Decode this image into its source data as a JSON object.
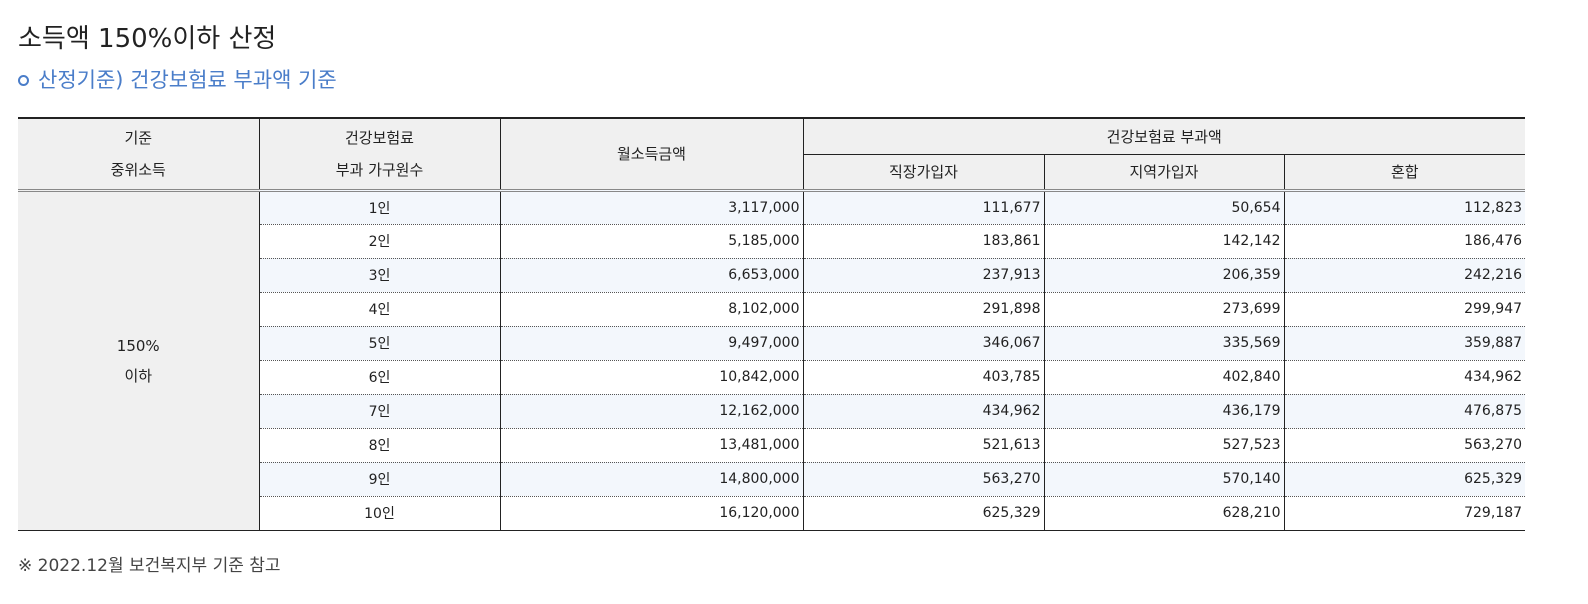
{
  "title": "소득액 150%이하 산정",
  "subtitle": "산정기준) 건강보험료 부과액 기준",
  "table": {
    "headers": {
      "col1_line1": "기준",
      "col1_line2": "중위소득",
      "col2_line1": "건강보험료",
      "col2_line2": "부과 가구원수",
      "col3": "월소득금액",
      "group": "건강보험료 부과액",
      "sub1": "직장가입자",
      "sub2": "지역가입자",
      "sub3": "혼합"
    },
    "merged_line1": "150%",
    "merged_line2": "이하",
    "rows": [
      {
        "count": "1인",
        "income": "3,117,000",
        "employee": "111,677",
        "regional": "50,654",
        "mixed": "112,823"
      },
      {
        "count": "2인",
        "income": "5,185,000",
        "employee": "183,861",
        "regional": "142,142",
        "mixed": "186,476"
      },
      {
        "count": "3인",
        "income": "6,653,000",
        "employee": "237,913",
        "regional": "206,359",
        "mixed": "242,216"
      },
      {
        "count": "4인",
        "income": "8,102,000",
        "employee": "291,898",
        "regional": "273,699",
        "mixed": "299,947"
      },
      {
        "count": "5인",
        "income": "9,497,000",
        "employee": "346,067",
        "regional": "335,569",
        "mixed": "359,887"
      },
      {
        "count": "6인",
        "income": "10,842,000",
        "employee": "403,785",
        "regional": "402,840",
        "mixed": "434,962"
      },
      {
        "count": "7인",
        "income": "12,162,000",
        "employee": "434,962",
        "regional": "436,179",
        "mixed": "476,875"
      },
      {
        "count": "8인",
        "income": "13,481,000",
        "employee": "521,613",
        "regional": "527,523",
        "mixed": "563,270"
      },
      {
        "count": "9인",
        "income": "14,800,000",
        "employee": "563,270",
        "regional": "570,140",
        "mixed": "625,329"
      },
      {
        "count": "10인",
        "income": "16,120,000",
        "employee": "625,329",
        "regional": "628,210",
        "mixed": "729,187"
      }
    ]
  },
  "footnote": "※ 2022.12월 보건복지부 기준 참고",
  "colors": {
    "accent": "#4a7dc9",
    "header_bg": "#f0f0f0",
    "stripe_bg": "#f3f7fc"
  }
}
